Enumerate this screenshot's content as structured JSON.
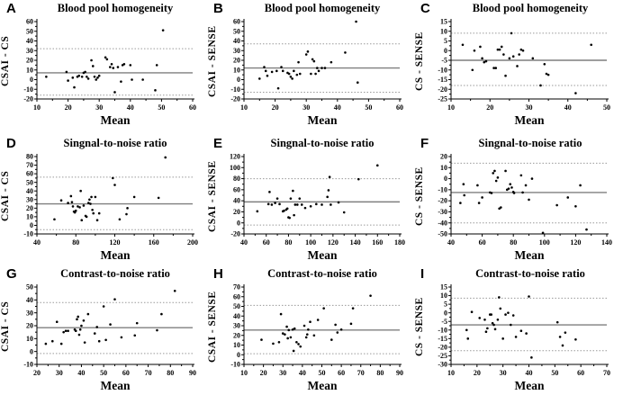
{
  "figure": {
    "background": "#ffffff",
    "xlabel_shared": "Mean"
  },
  "colors": {
    "point": "#000000",
    "mean_line": "#7f7f7f",
    "loa_line": "#9a9a9a",
    "axis": "#000000",
    "text": "#000000"
  },
  "chart_data": [
    {
      "panel": "A",
      "type": "scatter",
      "title": "Blood pool homogeneity",
      "xlabel": "Mean",
      "ylabel": "CSAI - CS",
      "xlim": [
        10,
        60
      ],
      "xtick_step": 10,
      "ylim": [
        -20,
        60
      ],
      "ytick_step": 10,
      "mean_line": 7,
      "upper_loa": 32,
      "lower_loa": -16,
      "grid": false,
      "points": [
        [
          13,
          3
        ],
        [
          19.5,
          8
        ],
        [
          20,
          -1
        ],
        [
          21.5,
          2
        ],
        [
          22,
          -8
        ],
        [
          23,
          3
        ],
        [
          23.5,
          4
        ],
        [
          24.5,
          3
        ],
        [
          25,
          7
        ],
        [
          25.5,
          8
        ],
        [
          26,
          3
        ],
        [
          26.5,
          1
        ],
        [
          27.5,
          20
        ],
        [
          28,
          14
        ],
        [
          28.5,
          3
        ],
        [
          29,
          0
        ],
        [
          29.5,
          2
        ],
        [
          30,
          4
        ],
        [
          32,
          23
        ],
        [
          32.5,
          21
        ],
        [
          33.5,
          13
        ],
        [
          34,
          16
        ],
        [
          34.5,
          12
        ],
        [
          35,
          -13
        ],
        [
          36,
          13
        ],
        [
          37,
          -2
        ],
        [
          37.5,
          15
        ],
        [
          38,
          16
        ],
        [
          40,
          15
        ],
        [
          40.5,
          0
        ],
        [
          44,
          0
        ],
        [
          48,
          -11
        ],
        [
          48.5,
          15
        ],
        [
          50.5,
          51
        ]
      ]
    },
    {
      "panel": "B",
      "type": "scatter",
      "title": "Blood pool homogeneity",
      "xlabel": "Mean",
      "ylabel": "CSAI - SENSE",
      "xlim": [
        10,
        60
      ],
      "xtick_step": 10,
      "ylim": [
        -20,
        60
      ],
      "ytick_step": 10,
      "mean_line": 12,
      "upper_loa": 37,
      "lower_loa": -13,
      "grid": false,
      "points": [
        [
          15,
          1
        ],
        [
          16.5,
          13
        ],
        [
          17,
          9
        ],
        [
          17.5,
          4
        ],
        [
          19,
          8
        ],
        [
          20.5,
          9
        ],
        [
          21,
          -9
        ],
        [
          22,
          13
        ],
        [
          22.5,
          9
        ],
        [
          24,
          7
        ],
        [
          24.5,
          6
        ],
        [
          25,
          3
        ],
        [
          25.5,
          1
        ],
        [
          26,
          9
        ],
        [
          27,
          5
        ],
        [
          27.5,
          18
        ],
        [
          28,
          6
        ],
        [
          30,
          26
        ],
        [
          30.5,
          29
        ],
        [
          31.5,
          6
        ],
        [
          32,
          21
        ],
        [
          32.5,
          19
        ],
        [
          33,
          6
        ],
        [
          33.5,
          12
        ],
        [
          34,
          9
        ],
        [
          35,
          12
        ],
        [
          36,
          12
        ],
        [
          38,
          18
        ],
        [
          42.5,
          28
        ],
        [
          46,
          60
        ],
        [
          46.5,
          -3
        ]
      ]
    },
    {
      "panel": "C",
      "type": "scatter",
      "title": "Blood pool homogeneity",
      "xlabel": "Mean",
      "ylabel": "CS - SENSE",
      "xlim": [
        10,
        50
      ],
      "xtick_step": 10,
      "ylim": [
        -25,
        15
      ],
      "ytick_step": 5,
      "mean_line": -5,
      "upper_loa": 9,
      "lower_loa": -18,
      "grid": false,
      "points": [
        [
          13,
          3
        ],
        [
          15.5,
          -10
        ],
        [
          16,
          0
        ],
        [
          17.5,
          2
        ],
        [
          18,
          -4
        ],
        [
          18.5,
          -6
        ],
        [
          19,
          -5.5
        ],
        [
          21,
          -9
        ],
        [
          21.5,
          -9
        ],
        [
          22,
          0.5
        ],
        [
          22.5,
          0.5
        ],
        [
          23,
          2
        ],
        [
          23.5,
          -2
        ],
        [
          24,
          -13
        ],
        [
          25,
          -4
        ],
        [
          25.5,
          9
        ],
        [
          26,
          -3
        ],
        [
          27,
          -8
        ],
        [
          27.5,
          -2
        ],
        [
          28,
          0.5
        ],
        [
          28.5,
          0
        ],
        [
          31,
          -4
        ],
        [
          33,
          -18
        ],
        [
          34,
          -7
        ],
        [
          34.5,
          -12
        ],
        [
          35,
          -12.5
        ],
        [
          42,
          -22
        ],
        [
          46,
          3
        ]
      ]
    },
    {
      "panel": "D",
      "type": "scatter",
      "title": "Singnal-to-noise ratio",
      "xlabel": "Mean",
      "ylabel": "CSAI - CS",
      "xlim": [
        40,
        200
      ],
      "xtick_step": 40,
      "ylim": [
        -10,
        80
      ],
      "ytick_step": 10,
      "mean_line": 25,
      "upper_loa": 56,
      "lower_loa": -5,
      "grid": false,
      "points": [
        [
          58,
          7
        ],
        [
          65,
          29
        ],
        [
          72,
          26
        ],
        [
          75,
          34
        ],
        [
          76,
          27
        ],
        [
          77,
          22
        ],
        [
          78,
          16
        ],
        [
          79,
          15
        ],
        [
          80,
          17
        ],
        [
          82,
          22
        ],
        [
          84,
          21
        ],
        [
          85,
          40
        ],
        [
          86,
          6
        ],
        [
          88,
          23
        ],
        [
          90,
          11
        ],
        [
          91,
          10
        ],
        [
          93,
          26
        ],
        [
          94,
          30
        ],
        [
          95,
          25
        ],
        [
          96,
          33
        ],
        [
          97,
          18
        ],
        [
          98,
          14
        ],
        [
          100,
          33
        ],
        [
          102,
          6
        ],
        [
          104,
          14
        ],
        [
          118,
          55
        ],
        [
          120,
          47
        ],
        [
          125,
          7
        ],
        [
          132,
          13
        ],
        [
          133,
          20
        ],
        [
          140,
          33
        ],
        [
          165,
          32
        ],
        [
          172,
          79
        ]
      ]
    },
    {
      "panel": "E",
      "type": "scatter",
      "title": "Singnal-to-noise ratio",
      "xlabel": "Mean",
      "ylabel": "CSAI - SENSE",
      "xlim": [
        40,
        180
      ],
      "xtick_step": 20,
      "ylim": [
        -20,
        120
      ],
      "ytick_step": 20,
      "mean_line": 38,
      "upper_loa": 80,
      "lower_loa": -4,
      "grid": false,
      "points": [
        [
          52,
          21
        ],
        [
          62,
          34
        ],
        [
          63,
          56
        ],
        [
          65,
          33
        ],
        [
          68,
          36
        ],
        [
          70,
          44
        ],
        [
          72,
          34
        ],
        [
          75,
          21
        ],
        [
          76,
          22
        ],
        [
          78,
          24
        ],
        [
          79,
          26
        ],
        [
          80,
          10
        ],
        [
          81,
          9
        ],
        [
          82,
          44
        ],
        [
          84,
          58
        ],
        [
          85,
          14
        ],
        [
          86,
          33
        ],
        [
          88,
          33
        ],
        [
          90,
          44
        ],
        [
          92,
          33
        ],
        [
          95,
          27
        ],
        [
          100,
          30
        ],
        [
          105,
          34
        ],
        [
          110,
          33
        ],
        [
          115,
          47
        ],
        [
          116,
          59
        ],
        [
          117,
          83
        ],
        [
          118,
          33
        ],
        [
          125,
          37
        ],
        [
          130,
          19
        ],
        [
          143,
          79
        ],
        [
          160,
          104
        ]
      ]
    },
    {
      "panel": "F",
      "type": "scatter",
      "title": "Singnal-to-noise ratio",
      "xlabel": "Mean",
      "ylabel": "CS - SENSE",
      "xlim": [
        40,
        140
      ],
      "xtick_step": 20,
      "ylim": [
        -50,
        20
      ],
      "ytick_step": 10,
      "mean_line": -12.5,
      "upper_loa": 14,
      "lower_loa": -40,
      "grid": false,
      "points": [
        [
          46,
          -22
        ],
        [
          48,
          -5
        ],
        [
          48.5,
          -15
        ],
        [
          57,
          -6
        ],
        [
          58,
          -22
        ],
        [
          60,
          -17
        ],
        [
          65,
          -12.5
        ],
        [
          66,
          -13
        ],
        [
          67,
          5
        ],
        [
          68,
          7
        ],
        [
          69,
          -2
        ],
        [
          70,
          1
        ],
        [
          71,
          -27
        ],
        [
          72,
          -26
        ],
        [
          75,
          7
        ],
        [
          76,
          -10
        ],
        [
          77,
          -9
        ],
        [
          78,
          -5
        ],
        [
          79,
          -8
        ],
        [
          80,
          -12
        ],
        [
          80.5,
          -13
        ],
        [
          85,
          3
        ],
        [
          86,
          -12.5
        ],
        [
          88,
          -6
        ],
        [
          90,
          -19
        ],
        [
          92,
          0
        ],
        [
          99,
          -49
        ],
        [
          108,
          -24
        ],
        [
          115,
          -17
        ],
        [
          120,
          -25
        ],
        [
          123,
          -6
        ],
        [
          127,
          -46
        ]
      ]
    },
    {
      "panel": "G",
      "type": "scatter",
      "title": "Contrast-to-noise ratio",
      "xlabel": "Mean",
      "ylabel": "CSAI - CS",
      "xlim": [
        20,
        90
      ],
      "xtick_step": 10,
      "ylim": [
        -10,
        50
      ],
      "ytick_step": 10,
      "mean_line": 18.5,
      "upper_loa": 38,
      "lower_loa": -1.5,
      "grid": false,
      "points": [
        [
          24,
          6
        ],
        [
          27,
          8
        ],
        [
          29,
          23
        ],
        [
          31,
          6
        ],
        [
          32,
          15
        ],
        [
          33,
          16
        ],
        [
          34,
          16
        ],
        [
          37,
          17
        ],
        [
          37.5,
          16
        ],
        [
          38,
          25
        ],
        [
          38.5,
          27
        ],
        [
          39,
          13
        ],
        [
          39.5,
          17
        ],
        [
          40,
          20
        ],
        [
          41,
          24
        ],
        [
          41.5,
          7
        ],
        [
          43,
          29
        ],
        [
          46,
          14
        ],
        [
          47,
          19
        ],
        [
          48,
          8
        ],
        [
          50,
          35
        ],
        [
          51,
          9
        ],
        [
          53,
          21
        ],
        [
          55,
          40.5
        ],
        [
          58,
          11
        ],
        [
          64,
          12.5
        ],
        [
          65,
          22
        ],
        [
          74,
          16.5
        ],
        [
          76,
          29
        ],
        [
          82,
          47
        ]
      ]
    },
    {
      "panel": "H",
      "type": "scatter",
      "title": "Contrast-to-noise ratio",
      "xlabel": "Mean",
      "ylabel": "CSAI - SENSE",
      "xlim": [
        10,
        90
      ],
      "xtick_step": 10,
      "ylim": [
        -10,
        70
      ],
      "ytick_step": 10,
      "mean_line": 25.5,
      "upper_loa": 51,
      "lower_loa": 1,
      "grid": false,
      "points": [
        [
          19,
          15.5
        ],
        [
          25,
          11.5
        ],
        [
          28,
          13
        ],
        [
          29,
          42
        ],
        [
          30,
          22
        ],
        [
          31,
          21
        ],
        [
          32,
          29
        ],
        [
          32.5,
          17
        ],
        [
          33,
          25.5
        ],
        [
          34,
          18
        ],
        [
          35,
          26
        ],
        [
          35.5,
          4
        ],
        [
          36,
          27
        ],
        [
          37,
          13
        ],
        [
          38,
          11
        ],
        [
          39,
          8.5
        ],
        [
          41,
          30
        ],
        [
          42,
          18
        ],
        [
          42.5,
          21
        ],
        [
          43,
          26
        ],
        [
          44,
          34
        ],
        [
          46,
          20
        ],
        [
          48,
          36
        ],
        [
          51,
          48
        ],
        [
          55,
          15.5
        ],
        [
          57,
          31
        ],
        [
          58,
          23
        ],
        [
          60,
          26
        ],
        [
          65,
          32
        ],
        [
          66,
          48
        ],
        [
          75,
          61
        ]
      ]
    },
    {
      "panel": "I",
      "type": "scatter",
      "title": "Contrast-to-noise ratio",
      "xlabel": "Mean",
      "ylabel": "CS - SENSE",
      "xlim": [
        10,
        70
      ],
      "xtick_step": 10,
      "ylim": [
        -30,
        15
      ],
      "ytick_step": 5,
      "mean_line": -7,
      "upper_loa": 8.5,
      "lower_loa": -22,
      "grid": false,
      "points": [
        [
          16,
          -10
        ],
        [
          16.5,
          -15
        ],
        [
          18,
          0.5
        ],
        [
          21,
          -3
        ],
        [
          23,
          -4
        ],
        [
          23.5,
          -11
        ],
        [
          24,
          -9
        ],
        [
          25,
          -1
        ],
        [
          25.5,
          -1
        ],
        [
          26,
          -6
        ],
        [
          26.5,
          -7
        ],
        [
          27,
          -9.5
        ],
        [
          28,
          -4
        ],
        [
          28.5,
          9
        ],
        [
          29,
          2.5
        ],
        [
          30,
          -15
        ],
        [
          31,
          -1
        ],
        [
          32,
          0
        ],
        [
          33,
          -7
        ],
        [
          34,
          -1.5
        ],
        [
          35,
          -14
        ],
        [
          37,
          -10.5
        ],
        [
          39,
          -12
        ],
        [
          40,
          9.5
        ],
        [
          41,
          -26
        ],
        [
          51,
          -5.5
        ],
        [
          52,
          -14
        ],
        [
          53,
          -19
        ],
        [
          54,
          -11.5
        ],
        [
          58,
          -15.5
        ]
      ]
    }
  ]
}
